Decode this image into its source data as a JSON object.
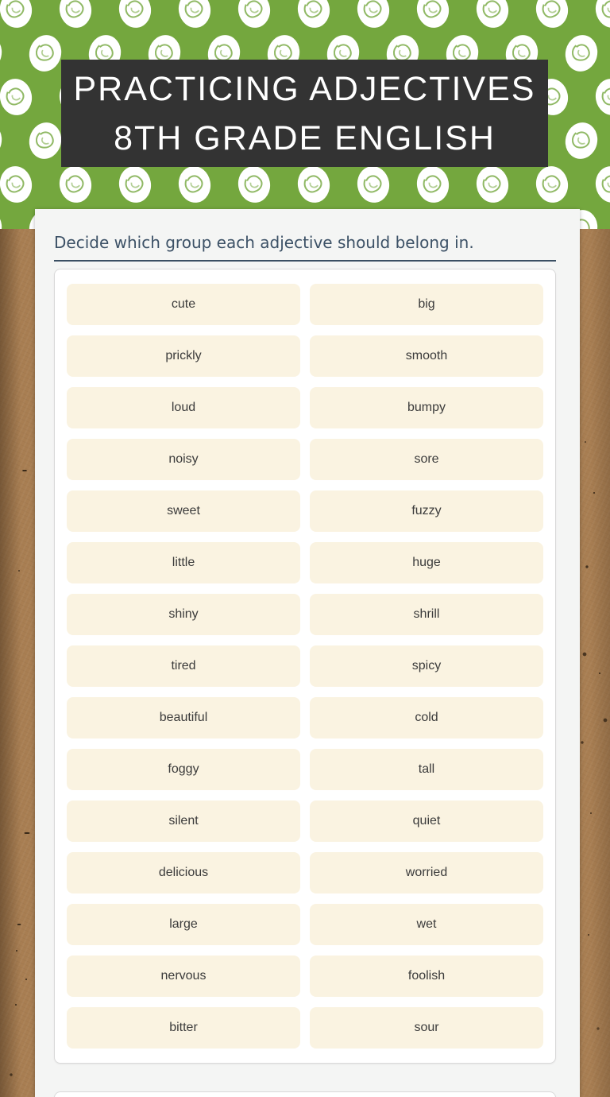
{
  "header": {
    "title_line1": "PRACTICING ADJECTIVES",
    "title_line2": "8TH GRADE ENGLISH"
  },
  "question": {
    "prompt": "Decide which group each adjective should belong in.",
    "adjectives": [
      "cute",
      "big",
      "prickly",
      "smooth",
      "loud",
      "bumpy",
      "noisy",
      "sore",
      "sweet",
      "fuzzy",
      "little",
      "huge",
      "shiny",
      "shrill",
      "tired",
      "spicy",
      "beautiful",
      "cold",
      "foggy",
      "tall",
      "silent",
      "quiet",
      "delicious",
      "worried",
      "large",
      "wet",
      "nervous",
      "foolish",
      "bitter",
      "sour"
    ]
  },
  "colors": {
    "header_green": "#74a73e",
    "banner_charcoal": "#333333",
    "panel_gray": "#f4f5f4",
    "card_white": "#ffffff",
    "tile_cream": "#faf3e1",
    "tile_text": "#3b3b3b",
    "prompt_slate": "#3c5166",
    "kraft_brown": "#a87e52"
  }
}
